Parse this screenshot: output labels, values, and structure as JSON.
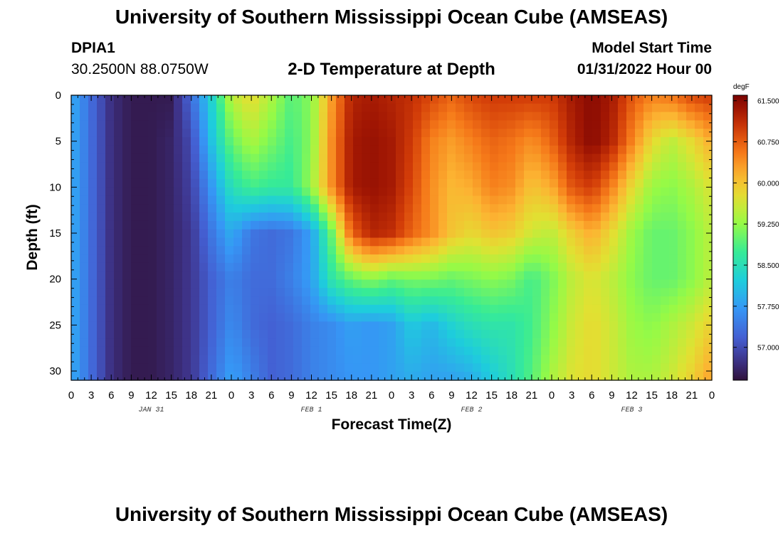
{
  "header": {
    "title": "University of Southern Mississippi Ocean Cube (AMSEAS)",
    "station_id": "DPIA1",
    "coords": "30.2500N  88.0750W",
    "subtitle": "2-D Temperature at Depth",
    "model_start_label": "Model Start Time",
    "model_start_value": "01/31/2022 Hour 00"
  },
  "footer": {
    "title": "University of Southern Mississippi Ocean Cube (AMSEAS)"
  },
  "chart_data": {
    "type": "heatmap",
    "title": "2-D Temperature at Depth",
    "xlabel": "Forecast Time(Z)",
    "ylabel": "Depth (ft)",
    "x_hours_range": [
      0,
      96
    ],
    "ylim": [
      0,
      31
    ],
    "y_ticks": [
      0,
      5,
      10,
      15,
      20,
      25,
      30
    ],
    "x_tick_labels": [
      "0",
      "3",
      "6",
      "9",
      "12",
      "15",
      "18",
      "21",
      "0",
      "3",
      "6",
      "9",
      "12",
      "15",
      "18",
      "21",
      "0",
      "3",
      "6",
      "9",
      "12",
      "15",
      "18",
      "21",
      "0",
      "3",
      "6",
      "9",
      "12",
      "15",
      "18",
      "21",
      "0"
    ],
    "day_labels": [
      {
        "hour": 12,
        "label": "JAN 31"
      },
      {
        "hour": 36,
        "label": "FEB 1"
      },
      {
        "hour": 60,
        "label": "FEB 2"
      },
      {
        "hour": 84,
        "label": "FEB 3"
      }
    ],
    "colorbar": {
      "unit": "degF",
      "min": 56.4,
      "max": 61.6,
      "tick_values": [
        61.5,
        60.75,
        60.0,
        59.25,
        58.5,
        57.75,
        57.0
      ],
      "tick_labels": [
        "61.500",
        "60.750",
        "60.000",
        "59.250",
        "58.500",
        "57.750",
        "57.000"
      ]
    },
    "depths_ft": [
      0,
      5,
      10,
      15,
      20,
      25,
      31
    ],
    "hours": [
      0,
      3,
      6,
      9,
      12,
      15,
      18,
      21,
      24,
      27,
      30,
      33,
      36,
      39,
      42,
      45,
      48,
      51,
      54,
      57,
      60,
      63,
      66,
      69,
      72,
      75,
      78,
      81,
      84,
      87,
      90,
      93,
      96
    ],
    "temperature_degF": [
      [
        57.9,
        57.3,
        56.7,
        56.5,
        56.5,
        56.5,
        57.3,
        58.3,
        59.5,
        59.8,
        59.4,
        58.9,
        59.2,
        60.3,
        61.2,
        61.3,
        61.2,
        61.1,
        60.9,
        60.7,
        60.9,
        61.0,
        61.0,
        61.0,
        61.0,
        61.3,
        61.5,
        61.3,
        60.8,
        60.5,
        60.6,
        60.9,
        61.0
      ],
      [
        57.9,
        57.3,
        56.7,
        56.5,
        56.5,
        56.6,
        57.0,
        58.1,
        59.0,
        59.4,
        59.1,
        58.8,
        59.2,
        60.4,
        61.3,
        61.4,
        61.3,
        61.0,
        60.5,
        60.3,
        60.5,
        60.7,
        60.6,
        60.4,
        60.7,
        61.2,
        61.5,
        61.2,
        60.5,
        59.8,
        59.5,
        59.8,
        60.2
      ],
      [
        57.9,
        57.3,
        56.7,
        56.5,
        56.5,
        56.6,
        56.9,
        57.7,
        58.5,
        58.8,
        58.7,
        58.7,
        59.3,
        60.4,
        61.3,
        61.4,
        61.3,
        60.9,
        60.4,
        60.1,
        60.2,
        60.5,
        60.4,
        60.0,
        60.2,
        60.8,
        61.0,
        60.5,
        59.8,
        59.3,
        59.2,
        59.4,
        59.7
      ],
      [
        57.9,
        57.3,
        56.7,
        56.5,
        56.5,
        56.6,
        56.8,
        57.4,
        57.9,
        57.4,
        57.3,
        57.4,
        57.8,
        59.0,
        60.7,
        61.2,
        61.1,
        60.7,
        60.4,
        60.0,
        59.8,
        60.0,
        59.9,
        59.6,
        59.5,
        59.9,
        60.2,
        59.8,
        59.3,
        59.0,
        59.0,
        59.2,
        59.5
      ],
      [
        57.9,
        57.3,
        56.7,
        56.5,
        56.5,
        56.6,
        56.8,
        57.2,
        57.5,
        57.3,
        57.3,
        57.5,
        57.8,
        58.6,
        59.0,
        59.2,
        59.0,
        59.1,
        59.1,
        59.0,
        59.1,
        59.2,
        59.1,
        58.8,
        59.1,
        59.5,
        59.7,
        59.5,
        59.2,
        59.0,
        59.0,
        59.2,
        59.5
      ],
      [
        57.9,
        57.3,
        56.7,
        56.5,
        56.5,
        56.6,
        56.8,
        57.2,
        57.6,
        57.3,
        57.2,
        57.3,
        57.5,
        57.6,
        57.8,
        57.7,
        57.8,
        58.2,
        58.0,
        58.3,
        58.5,
        58.6,
        58.6,
        58.8,
        59.2,
        59.6,
        59.8,
        59.6,
        59.3,
        59.2,
        59.4,
        59.6,
        59.9
      ],
      [
        57.9,
        57.3,
        56.7,
        56.5,
        56.5,
        56.6,
        56.8,
        57.3,
        57.8,
        57.5,
        57.2,
        57.3,
        57.5,
        57.6,
        57.7,
        57.7,
        57.8,
        57.9,
        57.8,
        57.8,
        57.9,
        58.2,
        58.5,
        58.9,
        59.4,
        59.7,
        59.8,
        59.6,
        59.4,
        59.4,
        59.6,
        59.9,
        60.3
      ]
    ]
  }
}
